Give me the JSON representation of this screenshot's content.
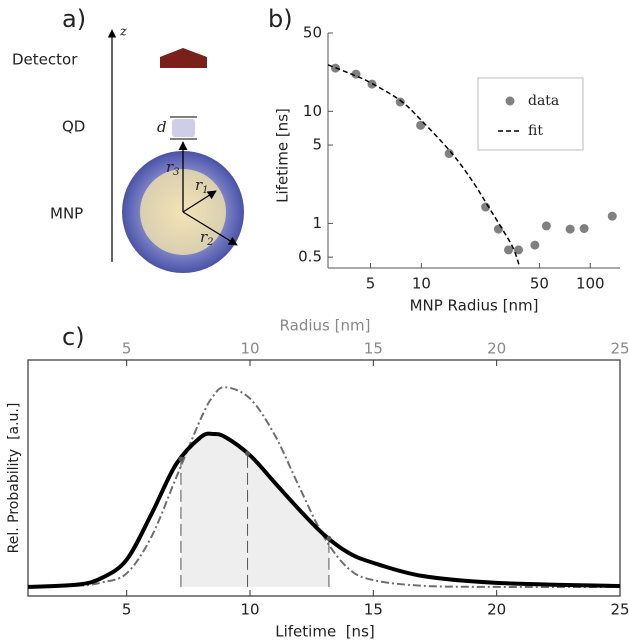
{
  "panel_labels": [
    "a)",
    "b)",
    "c)"
  ],
  "diagram": {
    "axis_label": "z",
    "detector": "Detector",
    "qd": "QD",
    "mnp": "MNP",
    "d": "d",
    "radii": [
      {
        "base": "r",
        "sub": "1"
      },
      {
        "base": "r",
        "sub": "2"
      },
      {
        "base": "r",
        "sub": "3"
      }
    ]
  },
  "chart_data": [
    {
      "type": "scatter",
      "xlabel": "MNP Radius [nm]",
      "ylabel": "Lifetime [ns]",
      "xscale": "log",
      "yscale": "log",
      "xlim": [
        2.8,
        150
      ],
      "ylim": [
        0.4,
        50
      ],
      "xticks": [
        5,
        10,
        50,
        100
      ],
      "yticks": [
        0.5,
        1,
        5,
        10,
        50
      ],
      "legend": "upper right",
      "series": [
        {
          "name": "data",
          "style": "marker",
          "color": "#808080",
          "x": [
            3.1,
            4.1,
            5.1,
            7.5,
            9.9,
            14.6,
            24,
            28.6,
            32.8,
            37.6,
            47,
            55,
            76,
            92,
            135
          ],
          "values": [
            24.3,
            21.5,
            17.5,
            12.1,
            7.5,
            4.2,
            1.4,
            0.89,
            0.58,
            0.58,
            0.64,
            0.95,
            0.89,
            0.9,
            1.16
          ]
        },
        {
          "name": "fit",
          "style": "dashed",
          "color": "#000000",
          "x": [
            2.8,
            4,
            5,
            7.5,
            10,
            15,
            20,
            25,
            30,
            35,
            38
          ],
          "values": [
            26,
            21,
            18,
            12.5,
            8.3,
            4.3,
            2.4,
            1.4,
            0.9,
            0.6,
            0.42
          ]
        }
      ]
    },
    {
      "type": "line",
      "xlabel": "Lifetime  [ns]",
      "x2label": "Radius [nm]",
      "ylabel": "Rel. Probability  [a.u.]",
      "xlim": [
        1,
        25
      ],
      "xticks": [
        5,
        10,
        15,
        20,
        25
      ],
      "x2lim": [
        1,
        25
      ],
      "x2ticks": [
        5,
        10,
        15,
        20,
        25
      ],
      "ylim": [
        -0.04,
        1
      ],
      "vlines": [
        7.2,
        9.9,
        13.2
      ],
      "x": [
        1,
        3,
        4,
        5,
        6,
        7,
        8,
        8.5,
        9,
        10,
        11,
        12,
        13,
        14,
        15,
        17,
        20,
        25
      ],
      "series": [
        {
          "style": "solid",
          "color": "#000000",
          "values": [
            0,
            0.01,
            0.04,
            0.12,
            0.32,
            0.54,
            0.66,
            0.674,
            0.66,
            0.58,
            0.46,
            0.34,
            0.23,
            0.15,
            0.106,
            0.048,
            0.018,
            0.004
          ]
        },
        {
          "style": "dashdot",
          "color": "#6e6e6e",
          "values": [
            0,
            0.005,
            0.02,
            0.06,
            0.22,
            0.48,
            0.74,
            0.84,
            0.88,
            0.83,
            0.67,
            0.44,
            0.22,
            0.08,
            0.03,
            0.005,
            0,
            0
          ]
        }
      ]
    }
  ]
}
